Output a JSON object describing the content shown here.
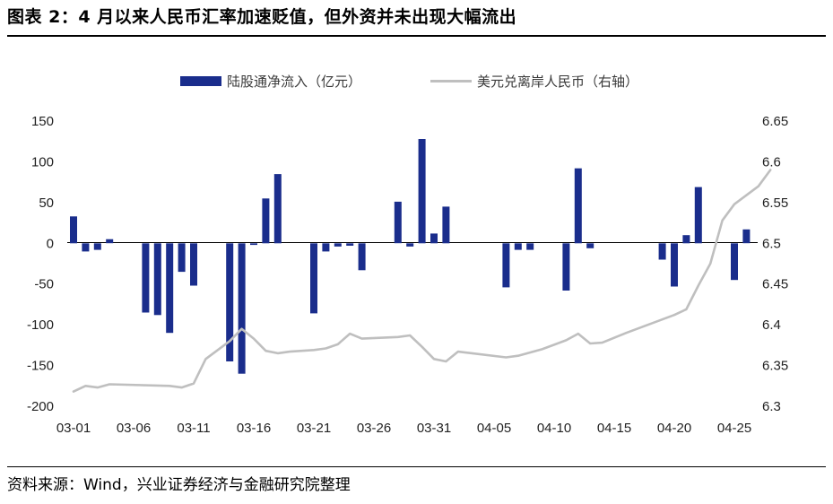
{
  "header": {
    "title": "图表 2：4 月以来人民币汇率加速贬值，但外资并未出现大幅流出"
  },
  "footer": {
    "source": "资料来源：Wind，兴业证券经济与金融研究院整理"
  },
  "colors": {
    "bar": "#1a2d8c",
    "line": "#bfbfbf"
  },
  "chart_data": {
    "type": "bar+line",
    "title": "4 月以来人民币汇率加速贬值，但外资并未出现大幅流出",
    "legend": {
      "position": "top",
      "bar_label": "陆股通净流入（亿元）",
      "line_label": "美元兑离岸人民币（右轴）"
    },
    "x_ticks": [
      "03-01",
      "03-06",
      "03-11",
      "03-16",
      "03-21",
      "03-26",
      "03-31",
      "04-05",
      "04-10",
      "04-15",
      "04-20",
      "04-25"
    ],
    "y_left": {
      "ticks": [
        "150",
        "100",
        "50",
        "0",
        "-50",
        "-100",
        "-150",
        "-200"
      ],
      "range": [
        -200,
        150
      ]
    },
    "y_right": {
      "ticks": [
        "6.65",
        "6.6",
        "6.55",
        "6.5",
        "6.45",
        "6.4",
        "6.35",
        "6.3"
      ],
      "range": [
        6.3,
        6.65
      ]
    },
    "series": [
      {
        "name": "陆股通净流入（亿元）",
        "kind": "bar",
        "axis": "left",
        "points": [
          {
            "x": "03-01",
            "y": 33
          },
          {
            "x": "03-02",
            "y": -10
          },
          {
            "x": "03-03",
            "y": -8
          },
          {
            "x": "03-04",
            "y": 5
          },
          {
            "x": "03-07",
            "y": -85
          },
          {
            "x": "03-08",
            "y": -88
          },
          {
            "x": "03-09",
            "y": -110
          },
          {
            "x": "03-10",
            "y": -35
          },
          {
            "x": "03-11",
            "y": -52
          },
          {
            "x": "03-14",
            "y": -145
          },
          {
            "x": "03-15",
            "y": -160
          },
          {
            "x": "03-16",
            "y": -2
          },
          {
            "x": "03-17",
            "y": 55
          },
          {
            "x": "03-18",
            "y": 85
          },
          {
            "x": "03-21",
            "y": -86
          },
          {
            "x": "03-22",
            "y": -10
          },
          {
            "x": "03-23",
            "y": -4
          },
          {
            "x": "03-24",
            "y": -3
          },
          {
            "x": "03-25",
            "y": -33
          },
          {
            "x": "03-28",
            "y": 51
          },
          {
            "x": "03-29",
            "y": -4
          },
          {
            "x": "03-30",
            "y": 128
          },
          {
            "x": "03-31",
            "y": 12
          },
          {
            "x": "04-01",
            "y": 45
          },
          {
            "x": "04-06",
            "y": -54
          },
          {
            "x": "04-07",
            "y": -8
          },
          {
            "x": "04-08",
            "y": -8
          },
          {
            "x": "04-11",
            "y": -58
          },
          {
            "x": "04-12",
            "y": 92
          },
          {
            "x": "04-13",
            "y": -6
          },
          {
            "x": "04-19",
            "y": -20
          },
          {
            "x": "04-20",
            "y": -53
          },
          {
            "x": "04-21",
            "y": 10
          },
          {
            "x": "04-22",
            "y": 69
          },
          {
            "x": "04-25",
            "y": -45
          },
          {
            "x": "04-26",
            "y": 17
          }
        ]
      },
      {
        "name": "美元兑离岸人民币（右轴）",
        "kind": "line",
        "axis": "right",
        "points": [
          {
            "x": "03-01",
            "y": 6.318
          },
          {
            "x": "03-02",
            "y": 6.325
          },
          {
            "x": "03-03",
            "y": 6.323
          },
          {
            "x": "03-04",
            "y": 6.327
          },
          {
            "x": "03-09",
            "y": 6.325
          },
          {
            "x": "03-10",
            "y": 6.323
          },
          {
            "x": "03-11",
            "y": 6.328
          },
          {
            "x": "03-12",
            "y": 6.358
          },
          {
            "x": "03-14",
            "y": 6.38
          },
          {
            "x": "03-15",
            "y": 6.395
          },
          {
            "x": "03-16",
            "y": 6.383
          },
          {
            "x": "03-17",
            "y": 6.368
          },
          {
            "x": "03-18",
            "y": 6.365
          },
          {
            "x": "03-19",
            "y": 6.367
          },
          {
            "x": "03-21",
            "y": 6.369
          },
          {
            "x": "03-22",
            "y": 6.371
          },
          {
            "x": "03-23",
            "y": 6.376
          },
          {
            "x": "03-24",
            "y": 6.389
          },
          {
            "x": "03-25",
            "y": 6.383
          },
          {
            "x": "03-28",
            "y": 6.385
          },
          {
            "x": "03-29",
            "y": 6.387
          },
          {
            "x": "03-30",
            "y": 6.373
          },
          {
            "x": "03-31",
            "y": 6.358
          },
          {
            "x": "04-01",
            "y": 6.355
          },
          {
            "x": "04-02",
            "y": 6.367
          },
          {
            "x": "04-06",
            "y": 6.36
          },
          {
            "x": "04-07",
            "y": 6.362
          },
          {
            "x": "04-09",
            "y": 6.37
          },
          {
            "x": "04-11",
            "y": 6.381
          },
          {
            "x": "04-12",
            "y": 6.389
          },
          {
            "x": "04-13",
            "y": 6.377
          },
          {
            "x": "04-14",
            "y": 6.378
          },
          {
            "x": "04-16",
            "y": 6.39
          },
          {
            "x": "04-18",
            "y": 6.401
          },
          {
            "x": "04-20",
            "y": 6.412
          },
          {
            "x": "04-21",
            "y": 6.419
          },
          {
            "x": "04-22",
            "y": 6.448
          },
          {
            "x": "04-23",
            "y": 6.475
          },
          {
            "x": "04-24",
            "y": 6.528
          },
          {
            "x": "04-25",
            "y": 6.548
          },
          {
            "x": "04-27",
            "y": 6.57
          },
          {
            "x": "04-28",
            "y": 6.59
          }
        ]
      }
    ]
  }
}
